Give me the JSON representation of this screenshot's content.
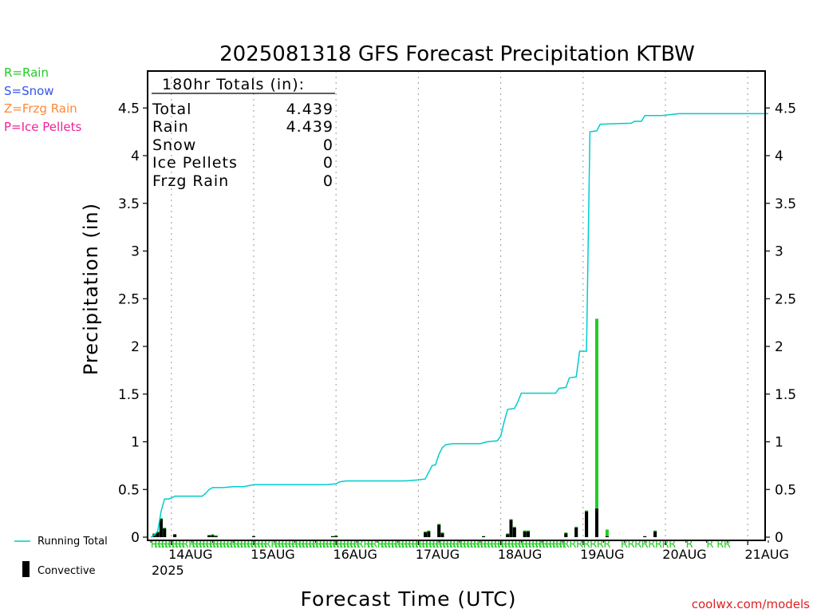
{
  "legend": {
    "rain": {
      "label": "R=Rain",
      "color": "#22cc22"
    },
    "snow": {
      "label": "S=Snow",
      "color": "#3355ee"
    },
    "frzg": {
      "label": "Z=Frzg Rain",
      "color": "#ff8833"
    },
    "ice": {
      "label": "P=Ice Pellets",
      "color": "#ee2299"
    },
    "running_total": {
      "label": "Running Total",
      "color": "#00cccc"
    },
    "convective": {
      "label": "Convective",
      "color": "#000000"
    }
  },
  "totals": {
    "header": "180hr Totals (in):",
    "rows": [
      {
        "label": "Total",
        "value": "4.439"
      },
      {
        "label": "Rain",
        "value": "4.439"
      },
      {
        "label": "Snow",
        "value": "0"
      },
      {
        "label": "Ice Pellets",
        "value": "0"
      },
      {
        "label": "Frzg Rain",
        "value": "0"
      }
    ]
  },
  "footer": {
    "source": "coolwx.com/models"
  },
  "chart_data": {
    "type": "line",
    "title": "2025081318 GFS Forecast Precipitation KTBW",
    "xlabel": "Forecast Time (UTC)",
    "ylabel": "Precipitation (in)",
    "ylim": [
      0,
      4.9
    ],
    "yticks": [
      "0",
      "0.5",
      "1",
      "1.5",
      "2",
      "2.5",
      "3",
      "3.5",
      "4",
      "4.5"
    ],
    "xlim_hours": [
      0,
      180
    ],
    "xticks": [
      {
        "hour": 6,
        "label": "14AUG"
      },
      {
        "hour": 30,
        "label": "15AUG"
      },
      {
        "hour": 54,
        "label": "16AUG"
      },
      {
        "hour": 78,
        "label": "17AUG"
      },
      {
        "hour": 102,
        "label": "18AUG"
      },
      {
        "hour": 126,
        "label": "19AUG"
      },
      {
        "hour": 150,
        "label": "20AUG"
      },
      {
        "hour": 174,
        "label": "21AUG"
      }
    ],
    "year_label": "2025",
    "grid": "vertical dotted",
    "legend_position": "left",
    "series": [
      {
        "name": "Running Total",
        "color": "#00cccc",
        "points": [
          [
            0,
            0
          ],
          [
            1,
            0.02
          ],
          [
            2,
            0.06
          ],
          [
            3,
            0.27
          ],
          [
            4,
            0.4
          ],
          [
            5,
            0.4
          ],
          [
            6,
            0.41
          ],
          [
            7,
            0.43
          ],
          [
            12,
            0.43
          ],
          [
            15,
            0.43
          ],
          [
            16,
            0.46
          ],
          [
            17,
            0.5
          ],
          [
            18,
            0.52
          ],
          [
            21,
            0.52
          ],
          [
            24,
            0.53
          ],
          [
            27,
            0.53
          ],
          [
            30,
            0.55
          ],
          [
            39,
            0.55
          ],
          [
            51,
            0.55
          ],
          [
            54,
            0.56
          ],
          [
            55,
            0.58
          ],
          [
            57,
            0.59
          ],
          [
            66,
            0.59
          ],
          [
            74,
            0.59
          ],
          [
            78,
            0.6
          ],
          [
            80,
            0.61
          ],
          [
            81,
            0.68
          ],
          [
            82,
            0.75
          ],
          [
            83,
            0.76
          ],
          [
            84,
            0.87
          ],
          [
            85,
            0.94
          ],
          [
            86,
            0.97
          ],
          [
            88,
            0.98
          ],
          [
            96,
            0.98
          ],
          [
            98,
            1.0
          ],
          [
            101,
            1.01
          ],
          [
            102,
            1.06
          ],
          [
            103,
            1.21
          ],
          [
            104,
            1.34
          ],
          [
            106,
            1.35
          ],
          [
            107,
            1.42
          ],
          [
            108,
            1.51
          ],
          [
            118,
            1.51
          ],
          [
            119,
            1.56
          ],
          [
            121,
            1.57
          ],
          [
            122,
            1.67
          ],
          [
            124,
            1.68
          ],
          [
            125,
            1.95
          ],
          [
            127,
            1.95
          ],
          [
            128,
            4.25
          ],
          [
            130,
            4.26
          ],
          [
            131,
            4.33
          ],
          [
            140,
            4.34
          ],
          [
            141,
            4.36
          ],
          [
            143,
            4.36
          ],
          [
            144,
            4.42
          ],
          [
            149,
            4.42
          ],
          [
            154,
            4.44
          ],
          [
            180,
            4.44
          ]
        ]
      },
      {
        "name": "Rain",
        "color": "#22cc22",
        "bars": [
          [
            1,
            0.04
          ],
          [
            2,
            0.06
          ],
          [
            3,
            0.2
          ],
          [
            4,
            0.1
          ],
          [
            7,
            0.03
          ],
          [
            17,
            0.02
          ],
          [
            18,
            0.03
          ],
          [
            19,
            0.02
          ],
          [
            30,
            0.01
          ],
          [
            53,
            0.01
          ],
          [
            54,
            0.02
          ],
          [
            80,
            0.06
          ],
          [
            81,
            0.07
          ],
          [
            84,
            0.14
          ],
          [
            85,
            0.05
          ],
          [
            97,
            0.01
          ],
          [
            104,
            0.04
          ],
          [
            105,
            0.19
          ],
          [
            106,
            0.11
          ],
          [
            109,
            0.07
          ],
          [
            110,
            0.07
          ],
          [
            121,
            0.05
          ],
          [
            124,
            0.11
          ],
          [
            127,
            0.28
          ],
          [
            130,
            2.29
          ],
          [
            133,
            0.08
          ],
          [
            144,
            0.01
          ],
          [
            147,
            0.07
          ]
        ]
      },
      {
        "name": "Convective",
        "color": "#000000",
        "bars": [
          [
            1,
            0.03
          ],
          [
            2,
            0.05
          ],
          [
            3,
            0.19
          ],
          [
            4,
            0.09
          ],
          [
            7,
            0.03
          ],
          [
            17,
            0.02
          ],
          [
            18,
            0.02
          ],
          [
            19,
            0.01
          ],
          [
            30,
            0.01
          ],
          [
            53,
            0.01
          ],
          [
            54,
            0.01
          ],
          [
            80,
            0.05
          ],
          [
            81,
            0.06
          ],
          [
            84,
            0.13
          ],
          [
            85,
            0.04
          ],
          [
            97,
            0.01
          ],
          [
            104,
            0.03
          ],
          [
            105,
            0.18
          ],
          [
            106,
            0.1
          ],
          [
            109,
            0.06
          ],
          [
            110,
            0.06
          ],
          [
            121,
            0.04
          ],
          [
            124,
            0.1
          ],
          [
            127,
            0.27
          ],
          [
            130,
            0.3
          ],
          [
            133,
            0.01
          ],
          [
            144,
            0.01
          ],
          [
            147,
            0.06
          ]
        ]
      }
    ],
    "precip_type_marks": {
      "symbol": "R",
      "hours": [
        1,
        2,
        3,
        4,
        5,
        6,
        7,
        8,
        9,
        10,
        12,
        13,
        14,
        15,
        16,
        17,
        18,
        19,
        20,
        21,
        22,
        23,
        24,
        25,
        26,
        27,
        28,
        29,
        30,
        31,
        32,
        33,
        34,
        36,
        37,
        38,
        39,
        40,
        41,
        42,
        43,
        44,
        45,
        46,
        47,
        48,
        49,
        50,
        51,
        52,
        53,
        54,
        55,
        56,
        57,
        58,
        59,
        60,
        61,
        63,
        64,
        65,
        67,
        68,
        69,
        70,
        71,
        72,
        73,
        74,
        75,
        76,
        77,
        78,
        79,
        80,
        81,
        82,
        83,
        84,
        85,
        86,
        87,
        88,
        89,
        90,
        91,
        92,
        93,
        94,
        95,
        96,
        97,
        98,
        99,
        100,
        101,
        102,
        103,
        104,
        105,
        106,
        107,
        108,
        109,
        110,
        111,
        112,
        113,
        114,
        115,
        116,
        117,
        118,
        119,
        120,
        121,
        123,
        125,
        127,
        129,
        131,
        133,
        138,
        140,
        142,
        144,
        146,
        148,
        150,
        152,
        157,
        163,
        166,
        168
      ]
    }
  }
}
